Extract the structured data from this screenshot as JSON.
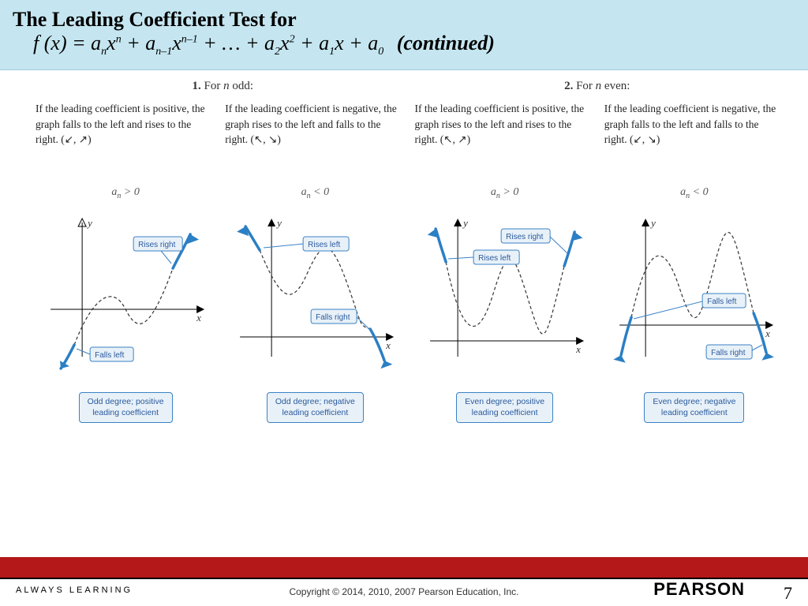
{
  "header": {
    "title_line1": "The Leading Coefficient Test for",
    "formula_html": "f (x) = aₙxⁿ + aₙ₋₁xⁿ⁻¹ + … + a₂x² + a₁x + a₀",
    "continued": "(continued)"
  },
  "sections": {
    "left": {
      "num": "1.",
      "label": "For n odd:"
    },
    "right": {
      "num": "2.",
      "label": "For n even:"
    }
  },
  "panels": [
    {
      "id": "odd-pos",
      "desc": "If the leading coefficient is positive, the graph falls to the left and rises to the right. (↙, ↗)",
      "condition": "aₙ > 0",
      "left_label": "Falls left",
      "right_label": "Rises right",
      "bottom_label": "Odd degree; positive\nleading coefficient",
      "graph": {
        "type": "end-behavior",
        "left_dir": "down",
        "right_dir": "up",
        "colors": {
          "curve": "#2b7fc4",
          "dash": "#333",
          "callout_fill": "#e8f1f8",
          "callout_stroke": "#3b82c4"
        }
      }
    },
    {
      "id": "odd-neg",
      "desc": "If the leading coefficient is negative, the graph rises to the left and falls to the right. (↖, ↘)",
      "condition": "aₙ < 0",
      "left_label": "Rises left",
      "right_label": "Falls right",
      "bottom_label": "Odd degree; negative\nleading coefficient",
      "graph": {
        "type": "end-behavior",
        "left_dir": "up",
        "right_dir": "down",
        "colors": {
          "curve": "#2b7fc4",
          "dash": "#333",
          "callout_fill": "#e8f1f8",
          "callout_stroke": "#3b82c4"
        }
      }
    },
    {
      "id": "even-pos",
      "desc": "If the leading coefficient is positive, the graph rises to the left and rises to the right. (↖, ↗)",
      "condition": "aₙ > 0",
      "left_label": "Rises left",
      "right_label": "Rises right",
      "bottom_label": "Even degree; positive\nleading coefficient",
      "graph": {
        "type": "end-behavior",
        "left_dir": "up",
        "right_dir": "up",
        "colors": {
          "curve": "#2b7fc4",
          "dash": "#333",
          "callout_fill": "#e8f1f8",
          "callout_stroke": "#3b82c4"
        }
      }
    },
    {
      "id": "even-neg",
      "desc": "If the leading coefficient is negative, the graph falls to the left and falls to the right. (↙, ↘)",
      "condition": "aₙ < 0",
      "left_label": "Falls left",
      "right_label": "Falls right",
      "bottom_label": "Even degree; negative\nleading coefficient",
      "graph": {
        "type": "end-behavior",
        "left_dir": "down",
        "right_dir": "down",
        "colors": {
          "curve": "#2b7fc4",
          "dash": "#333",
          "callout_fill": "#e8f1f8",
          "callout_stroke": "#3b82c4"
        }
      }
    }
  ],
  "footer": {
    "always": "ALWAYS LEARNING",
    "copyright": "Copyright © 2014, 2010, 2007 Pearson Education, Inc.",
    "brand": "PEARSON",
    "slide": "7"
  },
  "style": {
    "header_bg": "#c5e6f0",
    "footer_red": "#b41818",
    "callout_fill": "#e8f1f8",
    "callout_stroke": "#3b82c4",
    "curve_color": "#2b7fc4"
  }
}
